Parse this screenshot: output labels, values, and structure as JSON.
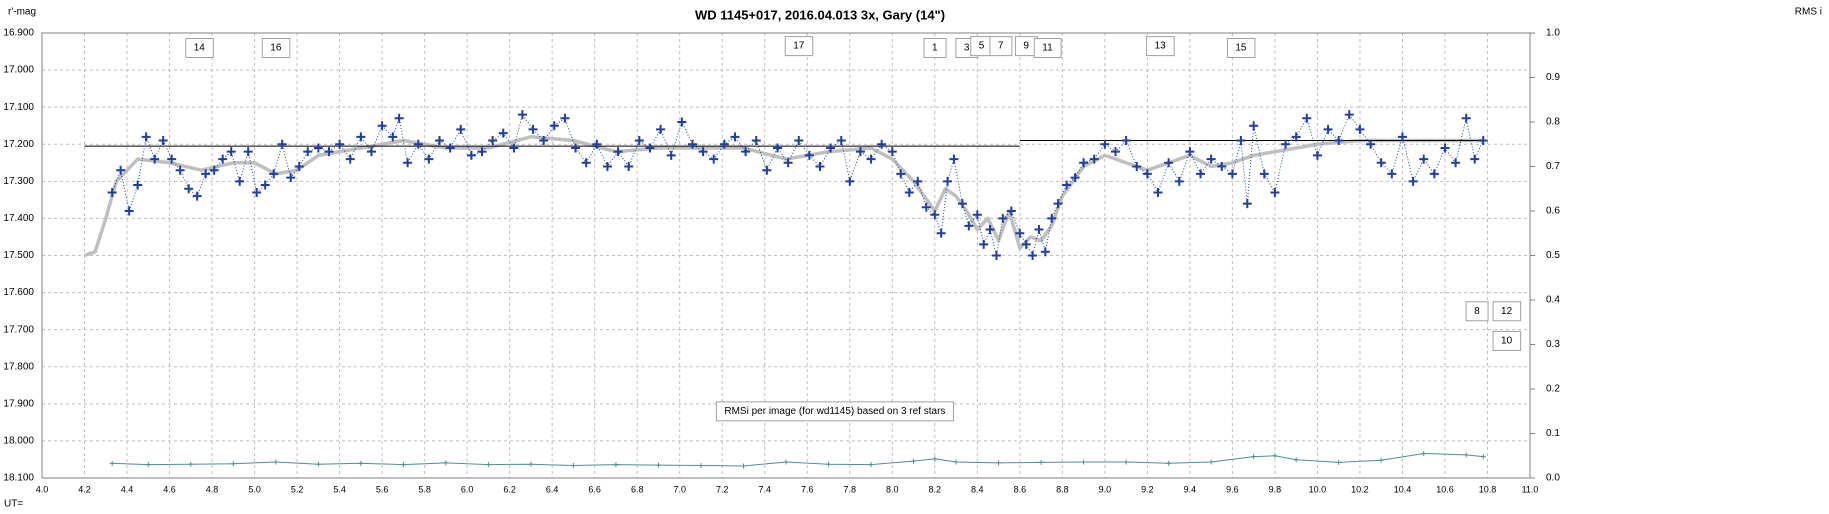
{
  "chart_data": {
    "type": "scatter",
    "title": "WD 1145+017,  2016.04.013  3x, Gary (14\")",
    "y_label": "r'-mag",
    "y2_label": "RMS i",
    "x_label": "UT=",
    "xlim": [
      4.0,
      11.0
    ],
    "ylim": [
      16.9,
      18.1
    ],
    "y_reversed": true,
    "y2lim": [
      0,
      1
    ],
    "grid": true,
    "xticks": [
      {
        "value": 4,
        "label": "4.0"
      },
      4.2,
      4.4,
      4.6,
      4.8,
      {
        "value": 5,
        "label": "5.0"
      },
      5.2,
      5.4,
      5.6,
      5.8,
      {
        "value": 6,
        "label": "6.0"
      },
      6.2,
      6.4,
      6.6,
      6.8,
      {
        "value": 7,
        "label": "7.0"
      },
      7.2,
      7.4,
      7.6,
      7.8,
      {
        "value": 8,
        "label": "8.0"
      },
      8.2,
      8.4,
      8.6,
      8.8,
      {
        "value": 9,
        "label": "9.0"
      },
      9.2,
      9.4,
      9.6,
      9.8,
      {
        "value": 10,
        "label": "10.0"
      },
      10.2,
      10.4,
      10.6,
      10.8,
      {
        "value": 11,
        "label": "11.0"
      }
    ],
    "yticks": [
      {
        "value": 16.9,
        "label": "16.900"
      },
      {
        "value": 17.0,
        "label": "17.000"
      },
      {
        "value": 17.1,
        "label": "17.100"
      },
      {
        "value": 17.2,
        "label": "17.200"
      },
      {
        "value": 17.3,
        "label": "17.300"
      },
      {
        "value": 17.4,
        "label": "17.400"
      },
      {
        "value": 17.5,
        "label": "17.500"
      },
      {
        "value": 17.6,
        "label": "17.600"
      },
      {
        "value": 17.7,
        "label": "17.700"
      },
      {
        "value": 17.8,
        "label": "17.800"
      },
      {
        "value": 17.9,
        "label": "17.900"
      },
      {
        "value": 18.0,
        "label": "18.000"
      },
      {
        "value": 18.1,
        "label": "18.100"
      }
    ],
    "y2ticks": [
      {
        "value": 0,
        "label": "0.0"
      },
      0.1,
      0.2,
      0.3,
      0.4,
      0.5,
      0.6,
      0.7,
      0.8,
      0.9,
      {
        "value": 1,
        "label": "1.0"
      }
    ],
    "series": [
      {
        "color": "#1f3f9f",
        "marker": "cross",
        "line": "dotted",
        "x": [
          4.33,
          4.37,
          4.41,
          4.45,
          4.49,
          4.53,
          4.57,
          4.61,
          4.65,
          4.69,
          4.73,
          4.77,
          4.81,
          4.85,
          4.89,
          4.93,
          4.97,
          5.01,
          5.05,
          5.09,
          5.13,
          5.17,
          5.21,
          5.25,
          5.3,
          5.35,
          5.4,
          5.45,
          5.5,
          5.55,
          5.6,
          5.65,
          5.68,
          5.72,
          5.77,
          5.82,
          5.87,
          5.92,
          5.97,
          6.02,
          6.07,
          6.12,
          6.17,
          6.22,
          6.26,
          6.31,
          6.36,
          6.41,
          6.46,
          6.51,
          6.56,
          6.61,
          6.66,
          6.71,
          6.76,
          6.81,
          6.86,
          6.91,
          6.96,
          7.01,
          7.06,
          7.11,
          7.16,
          7.21,
          7.26,
          7.31,
          7.36,
          7.41,
          7.46,
          7.51,
          7.56,
          7.61,
          7.66,
          7.71,
          7.76,
          7.8,
          7.85,
          7.9,
          7.95,
          8.0,
          8.04,
          8.08,
          8.12,
          8.16,
          8.2,
          8.23,
          8.26,
          8.29,
          8.33,
          8.36,
          8.4,
          8.43,
          8.46,
          8.49,
          8.52,
          8.56,
          8.6,
          8.63,
          8.66,
          8.69,
          8.72,
          8.75,
          8.78,
          8.82,
          8.86,
          8.9,
          8.95,
          9.0,
          9.05,
          9.1,
          9.15,
          9.2,
          9.25,
          9.3,
          9.35,
          9.4,
          9.45,
          9.5,
          9.55,
          9.6,
          9.64,
          9.67,
          9.7,
          9.75,
          9.8,
          9.85,
          9.9,
          9.95,
          10.0,
          10.05,
          10.1,
          10.15,
          10.2,
          10.25,
          10.3,
          10.35,
          10.4,
          10.45,
          10.5,
          10.55,
          10.6,
          10.65,
          10.7,
          10.74,
          10.78
        ],
        "values": [
          17.33,
          17.27,
          17.38,
          17.31,
          17.18,
          17.24,
          17.19,
          17.24,
          17.27,
          17.32,
          17.34,
          17.28,
          17.27,
          17.24,
          17.22,
          17.3,
          17.22,
          17.33,
          17.31,
          17.28,
          17.2,
          17.29,
          17.26,
          17.22,
          17.21,
          17.22,
          17.2,
          17.24,
          17.18,
          17.22,
          17.15,
          17.18,
          17.13,
          17.25,
          17.2,
          17.24,
          17.19,
          17.21,
          17.16,
          17.23,
          17.22,
          17.19,
          17.17,
          17.21,
          17.12,
          17.16,
          17.19,
          17.15,
          17.13,
          17.21,
          17.25,
          17.2,
          17.26,
          17.22,
          17.26,
          17.19,
          17.21,
          17.16,
          17.23,
          17.14,
          17.2,
          17.22,
          17.24,
          17.2,
          17.18,
          17.22,
          17.19,
          17.27,
          17.21,
          17.25,
          17.19,
          17.23,
          17.26,
          17.21,
          17.19,
          17.3,
          17.22,
          17.24,
          17.2,
          17.22,
          17.28,
          17.33,
          17.3,
          17.37,
          17.39,
          17.44,
          17.3,
          17.24,
          17.36,
          17.42,
          17.39,
          17.47,
          17.43,
          17.5,
          17.4,
          17.38,
          17.44,
          17.47,
          17.5,
          17.43,
          17.49,
          17.4,
          17.36,
          17.31,
          17.29,
          17.25,
          17.24,
          17.2,
          17.22,
          17.19,
          17.26,
          17.28,
          17.33,
          17.25,
          17.3,
          17.22,
          17.28,
          17.24,
          17.26,
          17.28,
          17.19,
          17.36,
          17.15,
          17.28,
          17.33,
          17.2,
          17.18,
          17.13,
          17.23,
          17.16,
          17.19,
          17.12,
          17.16,
          17.2,
          17.25,
          17.28,
          17.18,
          17.3,
          17.24,
          17.28,
          17.21,
          17.25,
          17.13,
          17.24,
          17.19
        ]
      },
      {
        "color": "#bfbfbf",
        "marker": "none",
        "line": "thick",
        "x": [
          4.2,
          4.25,
          4.3,
          4.35,
          4.45,
          4.6,
          4.75,
          4.9,
          5.0,
          5.1,
          5.2,
          5.3,
          5.5,
          5.7,
          5.9,
          6.1,
          6.3,
          6.5,
          6.7,
          6.9,
          7.1,
          7.3,
          7.5,
          7.7,
          7.9,
          8.0,
          8.1,
          8.15,
          8.2,
          8.25,
          8.3,
          8.35,
          8.4,
          8.45,
          8.5,
          8.55,
          8.6,
          8.65,
          8.7,
          8.75,
          8.8,
          8.9,
          9.0,
          9.2,
          9.4,
          9.5,
          9.6,
          9.7,
          9.8,
          9.9,
          10.0,
          10.2,
          10.4,
          10.6,
          10.78
        ],
        "values": [
          17.5,
          17.49,
          17.4,
          17.3,
          17.24,
          17.25,
          17.27,
          17.25,
          17.25,
          17.28,
          17.27,
          17.23,
          17.21,
          17.19,
          17.21,
          17.21,
          17.18,
          17.19,
          17.22,
          17.21,
          17.21,
          17.21,
          17.24,
          17.22,
          17.21,
          17.24,
          17.3,
          17.34,
          17.38,
          17.32,
          17.34,
          17.38,
          17.43,
          17.4,
          17.46,
          17.38,
          17.48,
          17.45,
          17.46,
          17.42,
          17.34,
          17.26,
          17.23,
          17.27,
          17.23,
          17.26,
          17.25,
          17.23,
          17.22,
          17.21,
          17.2,
          17.19,
          17.19,
          17.19,
          17.19
        ]
      },
      {
        "color": "#000000",
        "marker": "none",
        "line": "solid",
        "x": [
          4.2,
          8.6
        ],
        "values": [
          17.205,
          17.205
        ]
      },
      {
        "color": "#000000",
        "marker": "none",
        "line": "solid",
        "x": [
          8.6,
          10.8
        ],
        "values": [
          17.19,
          17.19
        ]
      },
      {
        "color": "#4a8f9a",
        "marker": "small-cross",
        "line": "solid",
        "axis": "y2",
        "x": [
          4.33,
          4.5,
          4.7,
          4.9,
          5.1,
          5.3,
          5.5,
          5.7,
          5.9,
          6.1,
          6.3,
          6.5,
          6.7,
          6.9,
          7.1,
          7.3,
          7.5,
          7.7,
          7.9,
          8.1,
          8.2,
          8.3,
          8.5,
          8.7,
          8.9,
          9.1,
          9.3,
          9.5,
          9.7,
          9.8,
          9.9,
          10.1,
          10.3,
          10.5,
          10.7,
          10.78
        ],
        "values": [
          0.033,
          0.03,
          0.031,
          0.032,
          0.036,
          0.031,
          0.033,
          0.03,
          0.034,
          0.03,
          0.031,
          0.028,
          0.03,
          0.029,
          0.028,
          0.027,
          0.036,
          0.031,
          0.03,
          0.038,
          0.043,
          0.036,
          0.034,
          0.035,
          0.036,
          0.036,
          0.033,
          0.036,
          0.048,
          0.05,
          0.041,
          0.035,
          0.04,
          0.055,
          0.052,
          0.048
        ]
      }
    ],
    "annotations": [
      {
        "text": "14",
        "x": 4.74,
        "y": 16.94
      },
      {
        "text": "16",
        "x": 5.1,
        "y": 16.94
      },
      {
        "text": "17",
        "x": 7.56,
        "y": 16.935
      },
      {
        "text": "1",
        "x": 8.2,
        "y": 16.94
      },
      {
        "text": "3",
        "x": 8.35,
        "y": 16.94
      },
      {
        "text": "5",
        "x": 8.42,
        "y": 16.935
      },
      {
        "text": "7",
        "x": 8.51,
        "y": 16.935
      },
      {
        "text": "9",
        "x": 8.63,
        "y": 16.935
      },
      {
        "text": "11",
        "x": 8.73,
        "y": 16.94
      },
      {
        "text": "13",
        "x": 9.26,
        "y": 16.935
      },
      {
        "text": "15",
        "x": 9.64,
        "y": 16.94
      },
      {
        "text": "8",
        "x": 10.75,
        "y": 17.65
      },
      {
        "text": "12",
        "x": 10.89,
        "y": 17.65
      },
      {
        "text": "10",
        "x": 10.89,
        "y": 17.73
      },
      {
        "text": "RMSi per image (for wd1145) based on 3 ref stars",
        "x": 7.73,
        "y": 17.92
      }
    ]
  }
}
